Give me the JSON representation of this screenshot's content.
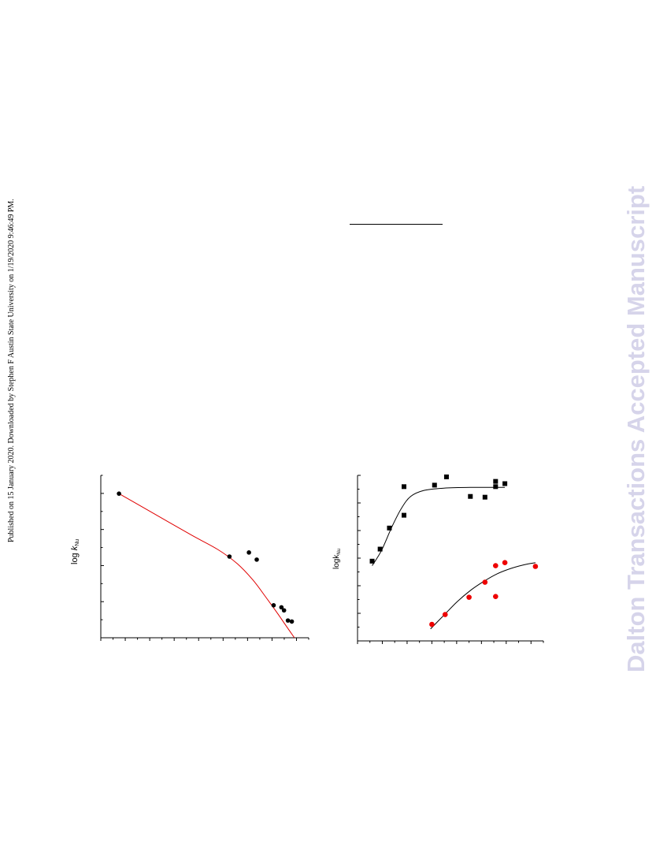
{
  "watermark": {
    "text": "Dalton Transactions Accepted Manuscript",
    "color": "#d6d4ea"
  },
  "side_note": {
    "text": "Published on 15 January 2020. Downloaded by Stephen F Austin State University on 1/19/2020 9:46:49 PM."
  },
  "chart_data": [
    {
      "type": "scatter",
      "title": "",
      "xlabel": "",
      "ylabel_main": "log ",
      "ylabel_italic": "k",
      "ylabel_sub": "Nu",
      "xlim": [
        0,
        16
      ],
      "ylim": [
        0,
        8
      ],
      "grid": false,
      "series": [
        {
          "points": [
            [
              1.4,
              7.1
            ],
            [
              9.9,
              4.0
            ],
            [
              11.4,
              4.2
            ],
            [
              12.0,
              3.85
            ],
            [
              13.3,
              1.6
            ],
            [
              13.9,
              1.5
            ],
            [
              14.1,
              1.35
            ],
            [
              14.4,
              0.85
            ],
            [
              14.7,
              0.8
            ]
          ],
          "color": "#000000",
          "marker": "circle"
        }
      ],
      "fit": {
        "color": "#e00000",
        "points": [
          [
            1.4,
            7.1
          ],
          [
            4.0,
            6.15
          ],
          [
            7.0,
            5.05
          ],
          [
            9.0,
            4.35
          ],
          [
            10.5,
            3.65
          ],
          [
            11.7,
            2.85
          ],
          [
            12.7,
            2.0
          ],
          [
            13.6,
            1.2
          ],
          [
            14.3,
            0.55
          ],
          [
            14.9,
            0.0
          ]
        ]
      }
    },
    {
      "type": "scatter",
      "title": "",
      "xlabel": "",
      "ylabel_main": "logk",
      "ylabel_sub": "Nu",
      "xlim": [
        0,
        14
      ],
      "ylim": [
        0,
        11
      ],
      "grid": false,
      "series": [
        {
          "points": [
            [
              1.1,
              5.3
            ],
            [
              1.7,
              6.1
            ],
            [
              2.4,
              7.5
            ],
            [
              3.5,
              8.35
            ],
            [
              3.5,
              10.25
            ],
            [
              5.8,
              10.35
            ],
            [
              6.7,
              10.9
            ],
            [
              8.5,
              9.6
            ],
            [
              9.6,
              9.55
            ],
            [
              10.4,
              10.25
            ],
            [
              10.4,
              10.6
            ],
            [
              11.1,
              10.45
            ]
          ],
          "color": "#000000",
          "marker": "square"
        },
        {
          "points": [
            [
              5.6,
              1.1
            ],
            [
              6.6,
              1.75
            ],
            [
              8.4,
              2.9
            ],
            [
              9.6,
              3.9
            ],
            [
              10.4,
              2.95
            ],
            [
              10.4,
              5.0
            ],
            [
              11.1,
              5.2
            ],
            [
              13.4,
              4.95
            ]
          ],
          "color": "#ee0000",
          "marker": "circle"
        }
      ],
      "fits": [
        {
          "color": "#000000",
          "points": [
            [
              1.1,
              5.0
            ],
            [
              1.8,
              6.0
            ],
            [
              2.6,
              7.6
            ],
            [
              3.3,
              8.8
            ],
            [
              4.0,
              9.6
            ],
            [
              5.0,
              10.0
            ],
            [
              6.5,
              10.15
            ],
            [
              8.5,
              10.2
            ],
            [
              11.1,
              10.2
            ]
          ]
        },
        {
          "color": "#000000",
          "points": [
            [
              5.5,
              0.8
            ],
            [
              6.5,
              1.7
            ],
            [
              7.5,
              2.6
            ],
            [
              8.5,
              3.35
            ],
            [
              9.5,
              3.95
            ],
            [
              10.5,
              4.45
            ],
            [
              11.5,
              4.8
            ],
            [
              12.5,
              5.05
            ],
            [
              13.4,
              5.2
            ]
          ]
        }
      ]
    }
  ]
}
